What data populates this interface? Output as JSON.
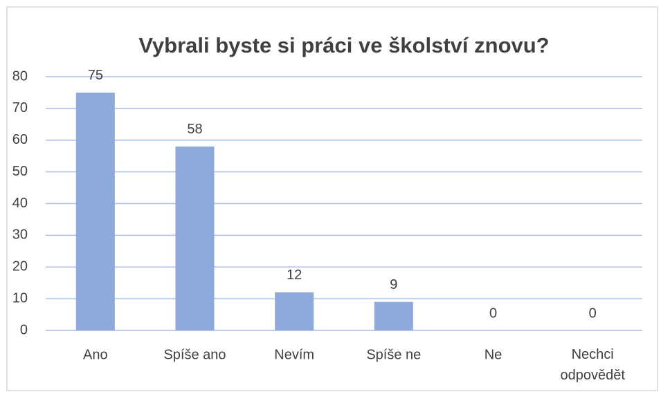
{
  "chart_data": {
    "type": "bar",
    "title": "Vybrali byste si práci ve školství znovu?",
    "categories": [
      "Ano",
      "Spíše ano",
      "Nevím",
      "Spíše ne",
      "Ne",
      "Nechci odpovědět"
    ],
    "values": [
      75,
      58,
      12,
      9,
      0,
      0
    ],
    "color": "#8eaadb",
    "ylim": [
      0,
      80
    ],
    "yticks": [
      0,
      10,
      20,
      30,
      40,
      50,
      60,
      70,
      80
    ],
    "grid": true
  }
}
